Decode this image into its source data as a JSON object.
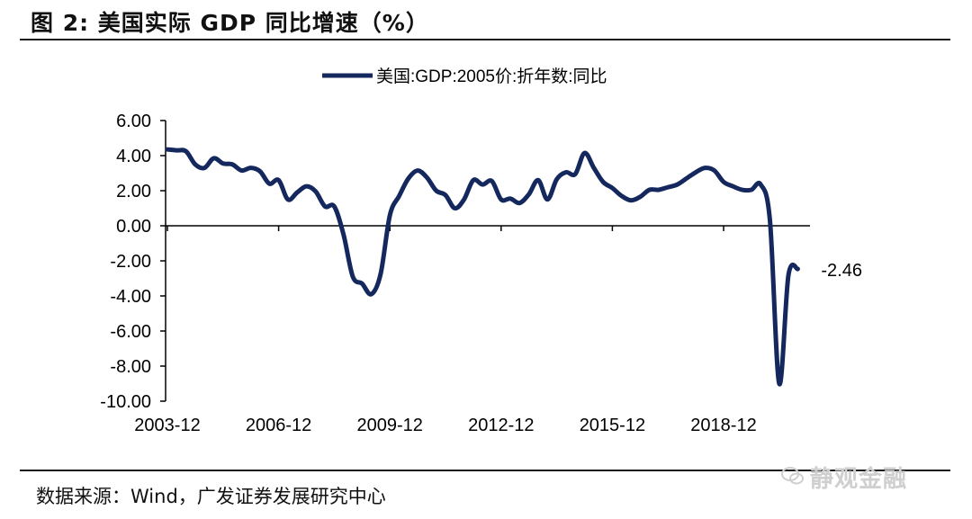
{
  "figure": {
    "title": "图 2:  美国实际 GDP 同比增速（%）",
    "source": "数据来源：Wind，广发证券发展研究中心",
    "watermark": "静观金融"
  },
  "chart_data": {
    "type": "line",
    "title": "",
    "xlabel": "",
    "ylabel": "",
    "ylim": [
      -10,
      6
    ],
    "y_ticks": [
      "6.00",
      "4.00",
      "2.00",
      "0.00",
      "-2.00",
      "-4.00",
      "-6.00",
      "-8.00",
      "-10.00"
    ],
    "x_ticks": [
      "2003-12",
      "2006-12",
      "2009-12",
      "2012-12",
      "2015-12",
      "2018-12"
    ],
    "legend": "top-center",
    "series": [
      {
        "name": "美国:GDP:2005价:折年数:同比",
        "color": "#14285e",
        "last_label": "-2.46",
        "x": [
          "2003-12",
          "2004-03",
          "2004-06",
          "2004-09",
          "2004-12",
          "2005-03",
          "2005-06",
          "2005-09",
          "2005-12",
          "2006-03",
          "2006-06",
          "2006-09",
          "2006-12",
          "2007-03",
          "2007-06",
          "2007-09",
          "2007-12",
          "2008-03",
          "2008-06",
          "2008-09",
          "2008-12",
          "2009-03",
          "2009-06",
          "2009-09",
          "2009-12",
          "2010-03",
          "2010-06",
          "2010-09",
          "2010-12",
          "2011-03",
          "2011-06",
          "2011-09",
          "2011-12",
          "2012-03",
          "2012-06",
          "2012-09",
          "2012-12",
          "2013-03",
          "2013-06",
          "2013-09",
          "2013-12",
          "2014-03",
          "2014-06",
          "2014-09",
          "2014-12",
          "2015-03",
          "2015-06",
          "2015-09",
          "2015-12",
          "2016-03",
          "2016-06",
          "2016-09",
          "2016-12",
          "2017-03",
          "2017-06",
          "2017-09",
          "2017-12",
          "2018-03",
          "2018-06",
          "2018-09",
          "2018-12",
          "2019-03",
          "2019-06",
          "2019-09",
          "2019-12",
          "2020-03",
          "2020-06",
          "2020-09",
          "2020-12"
        ],
        "values": [
          4.35,
          4.3,
          4.25,
          3.5,
          3.3,
          3.85,
          3.55,
          3.5,
          3.15,
          3.3,
          3.1,
          2.4,
          2.6,
          1.5,
          1.9,
          2.25,
          1.95,
          1.1,
          1.1,
          -0.5,
          -2.9,
          -3.3,
          -3.9,
          -2.75,
          0.6,
          1.7,
          2.7,
          3.15,
          2.75,
          2.0,
          1.75,
          1.0,
          1.5,
          2.6,
          2.35,
          2.55,
          1.5,
          1.55,
          1.3,
          1.8,
          2.6,
          1.5,
          2.65,
          3.05,
          2.95,
          4.15,
          3.3,
          2.5,
          2.15,
          1.7,
          1.45,
          1.65,
          2.05,
          2.05,
          2.2,
          2.35,
          2.7,
          3.05,
          3.3,
          3.15,
          2.5,
          2.25,
          2.05,
          2.05,
          2.35,
          0.3,
          -9.0,
          -2.8,
          -2.46
        ]
      }
    ]
  }
}
